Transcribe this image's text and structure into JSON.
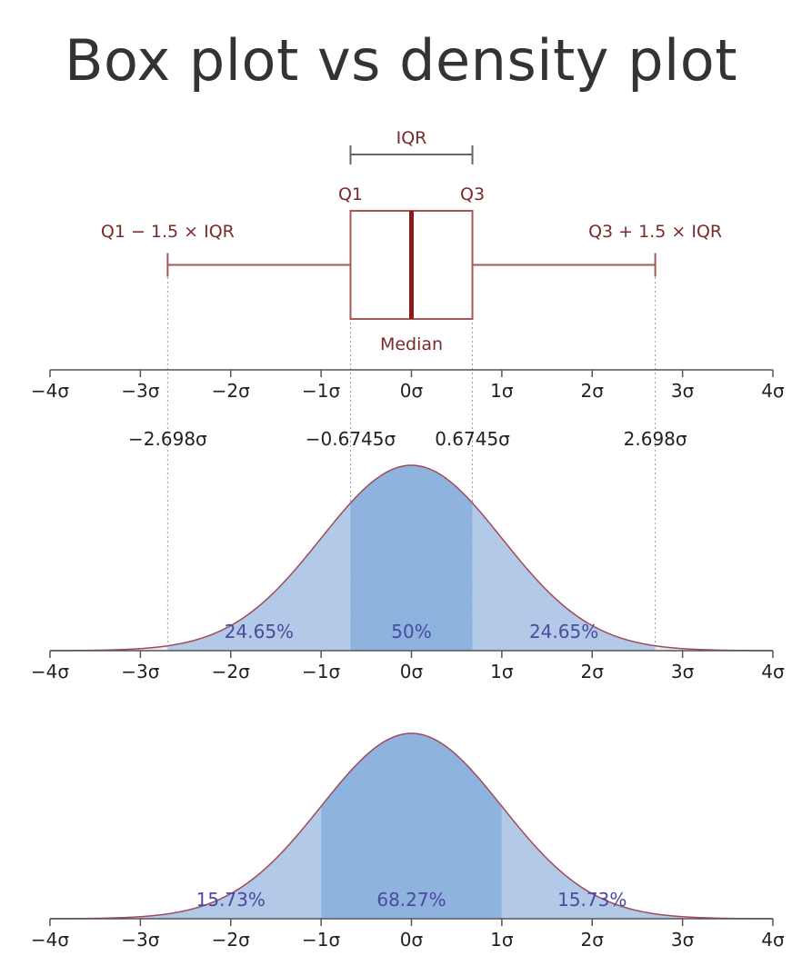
{
  "title": "Box plot vs density plot",
  "colors": {
    "box_stroke": "#a05a5a",
    "median": "#8b1a1a",
    "annotation_text": "#7a2a2a",
    "fill_outer": "#b3c9e8",
    "fill_inner": "#8fb3df",
    "curve": "#a04a5a",
    "pct_text": "#4a4aa0",
    "guide_line": "#999999"
  },
  "box_plot": {
    "iqr_label": "IQR",
    "q1_label": "Q1",
    "q3_label": "Q3",
    "median_label": "Median",
    "lower_whisker_label": "Q1 − 1.5 × IQR",
    "upper_whisker_label": "Q3 + 1.5 × IQR",
    "q1": -0.6745,
    "median": 0,
    "q3": 0.6745,
    "lower_whisker": -2.698,
    "upper_whisker": 2.698
  },
  "sigma_markers": [
    {
      "value": -2.698,
      "label": "−2.698σ"
    },
    {
      "value": -0.6745,
      "label": "−0.6745σ"
    },
    {
      "value": 0.6745,
      "label": "0.6745σ"
    },
    {
      "value": 2.698,
      "label": "2.698σ"
    }
  ],
  "axis_ticks": [
    "−4σ",
    "−3σ",
    "−2σ",
    "−1σ",
    "0σ",
    "1σ",
    "2σ",
    "3σ",
    "4σ"
  ],
  "chart_data": [
    {
      "type": "area",
      "distribution": "standard normal",
      "xlim": [
        -4,
        4
      ],
      "boundaries": [
        -2.698,
        -0.6745,
        0.6745,
        2.698
      ],
      "regions": [
        {
          "from": -2.698,
          "to": -0.6745,
          "label": "24.65%"
        },
        {
          "from": -0.6745,
          "to": 0.6745,
          "label": "50%"
        },
        {
          "from": 0.6745,
          "to": 2.698,
          "label": "24.65%"
        }
      ]
    },
    {
      "type": "area",
      "distribution": "standard normal",
      "xlim": [
        -4,
        4
      ],
      "boundaries": [
        -3,
        -1,
        1,
        3
      ],
      "regions": [
        {
          "from": -3,
          "to": -1,
          "label": "15.73%"
        },
        {
          "from": -1,
          "to": 1,
          "label": "68.27%"
        },
        {
          "from": 1,
          "to": 3,
          "label": "15.73%"
        }
      ]
    }
  ]
}
